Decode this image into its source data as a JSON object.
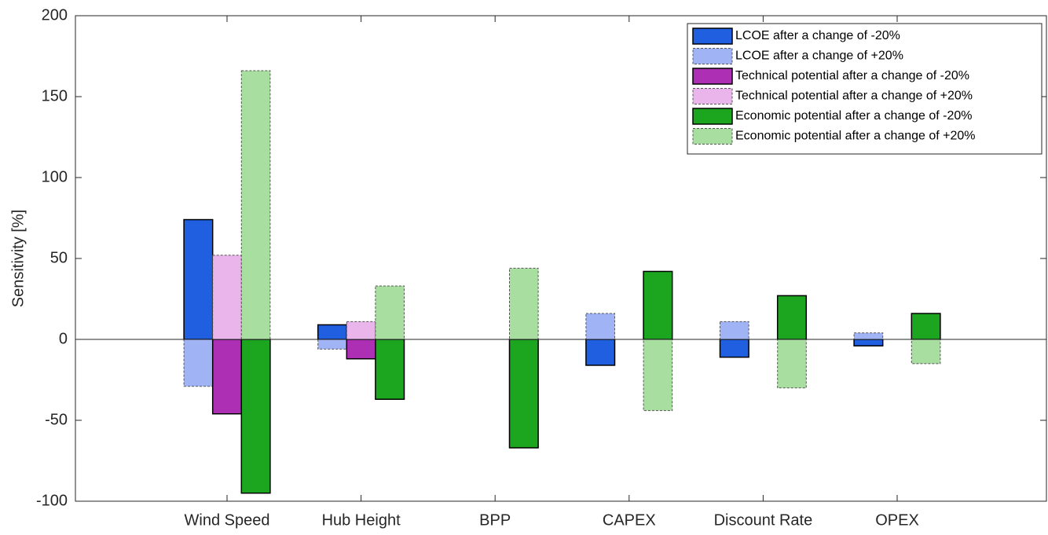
{
  "chart_data": {
    "type": "bar",
    "y_label": "Sensitivity [%]",
    "categories": [
      "Wind Speed",
      "Hub Height",
      "BPP",
      "CAPEX",
      "Discount Rate",
      "OPEX"
    ],
    "ylim": [
      -100,
      200
    ],
    "yticks": [
      -100,
      -50,
      0,
      50,
      100,
      150,
      200
    ],
    "legend": "upper right",
    "series": [
      {
        "name": "LCOE after a change of -20%",
        "color": "#1f5fe0",
        "line_style": "solid",
        "values": [
          74,
          9,
          0,
          -16,
          -11,
          -4
        ]
      },
      {
        "name": "LCOE after a change of +20%",
        "color": "#9fb3f5",
        "line_style": "dashed",
        "values": [
          -29,
          -6,
          0,
          16,
          11,
          4
        ]
      },
      {
        "name": "Technical potential after a change of -20%",
        "color": "#ad2fb4",
        "line_style": "solid",
        "values": [
          -46,
          -12,
          0,
          0,
          0,
          0
        ]
      },
      {
        "name": "Technical potential after a change of +20%",
        "color": "#eab5ea",
        "line_style": "dashed",
        "values": [
          52,
          11,
          0,
          0,
          0,
          0
        ]
      },
      {
        "name": "Economic potential after a change of -20%",
        "color": "#1ca61f",
        "line_style": "solid",
        "values": [
          -95,
          -37,
          -67,
          42,
          27,
          16
        ]
      },
      {
        "name": "Economic potential after a change of +20%",
        "color": "#a8dea0",
        "line_style": "dashed",
        "values": [
          166,
          33,
          44,
          -44,
          -30,
          -15
        ]
      }
    ]
  }
}
